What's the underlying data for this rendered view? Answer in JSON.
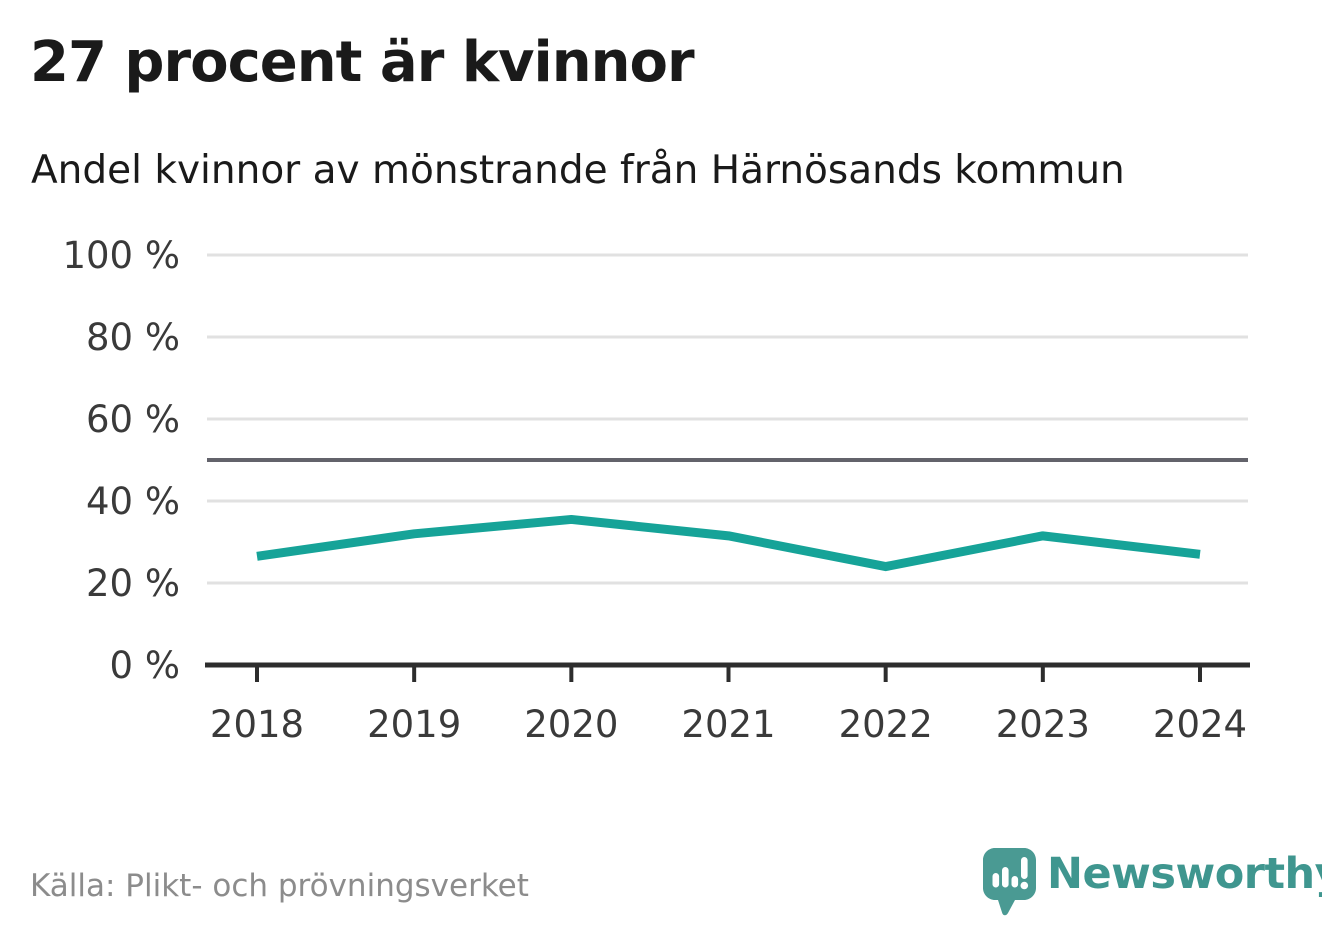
{
  "header": {
    "title": "27 procent är kvinnor",
    "subtitle": "Andel kvinnor av mönstrande från Härnösands kommun"
  },
  "chart_data": {
    "type": "line",
    "title": "27 procent är kvinnor",
    "subtitle": "Andel kvinnor av mönstrande från Härnösands kommun",
    "categories": [
      "2018",
      "2019",
      "2020",
      "2021",
      "2022",
      "2023",
      "2024"
    ],
    "series": [
      {
        "name": "Andel kvinnor av mönstrande",
        "values": [
          26.5,
          32,
          35.5,
          31.5,
          24,
          31.5,
          27
        ]
      }
    ],
    "unit": "%",
    "ylim": [
      0,
      100
    ],
    "yticks": [
      0,
      20,
      40,
      60,
      80,
      100
    ],
    "ytick_labels": [
      "0 %",
      "20 %",
      "40 %",
      "60 %",
      "80 %",
      "100 %"
    ],
    "reference_line": 50,
    "grid": true,
    "legend": "none",
    "line_color": "#16a398"
  },
  "footer": {
    "source": "Källa: Plikt- och prövningsverket",
    "brand": "Newsworthy"
  },
  "colors": {
    "text": "#1a1a1a",
    "tick": "#3a3a3a",
    "muted": "#8c8c8c",
    "grid": "#e1e1e1",
    "axis": "#2d2d2d",
    "reference": "#63636b",
    "accent": "#16a398",
    "brand": "#3f968f"
  }
}
